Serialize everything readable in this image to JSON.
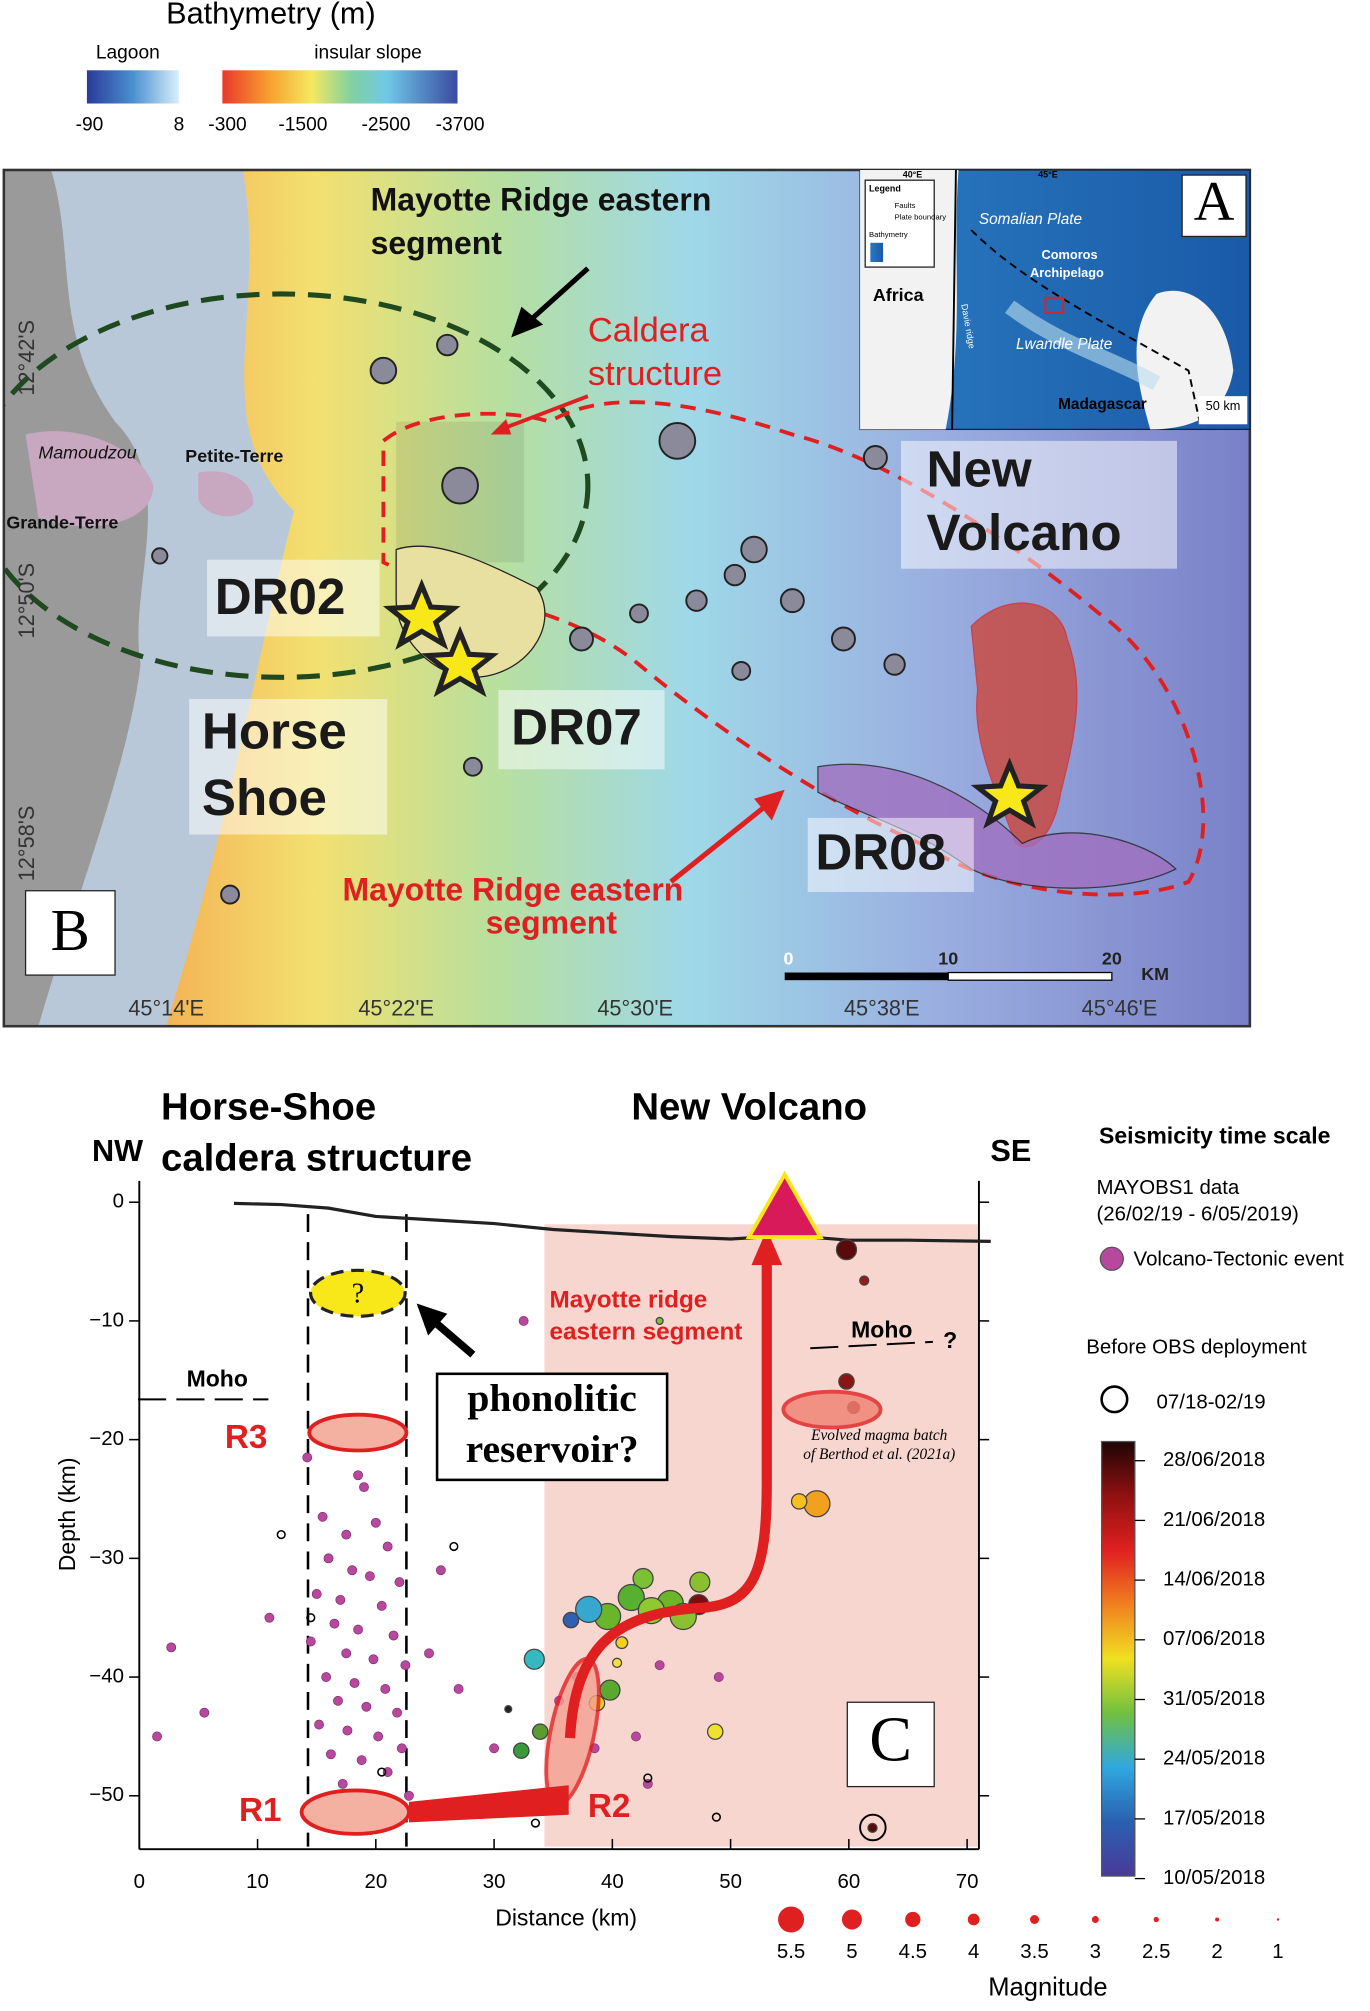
{
  "bathymetry_legend": {
    "title": "Bathymetry (m)",
    "lagoon": "Lagoon",
    "slope": "insular slope",
    "lagoon_ticks": [
      -90,
      8
    ],
    "slope_ticks": [
      -300,
      -1500,
      -2500,
      -3700
    ]
  },
  "map": {
    "panel": "B",
    "ridge_black": [
      "Mayotte Ridge eastern",
      "segment"
    ],
    "caldera": [
      "Caldera",
      "structure"
    ],
    "places": [
      "Mamoudzou",
      "Petite-Terre",
      "Grande-Terre"
    ],
    "new_volcano": [
      "New",
      "Volcano"
    ],
    "samples": [
      "DR02",
      "DR07",
      "DR08"
    ],
    "horse_shoe": [
      "Horse",
      "Shoe"
    ],
    "ridge_red": [
      "Mayotte Ridge eastern",
      "segment"
    ],
    "lat_labels": [
      "12°42'S",
      "12°50'S",
      "12°58'S"
    ],
    "lon_labels": [
      "45°14'E",
      "45°22'E",
      "45°30'E",
      "45°38'E",
      "45°46'E"
    ],
    "scale_ticks": [
      0,
      10,
      20
    ],
    "scale_unit": "KM"
  },
  "inset": {
    "panel": "A",
    "legend": "Legend",
    "faults": "Faults",
    "plate": "Plate boundary",
    "bathy": "Bathymetry",
    "lon": [
      "40°E",
      "45°E"
    ],
    "africa": "Africa",
    "somalian": "Somalian Plate",
    "comoros": [
      "Comoros",
      "Archipelago"
    ],
    "lwandle": "Lwandle Plate",
    "madagascar": "Madagascar",
    "davie": "Davie ridge",
    "scale": "50 km"
  },
  "chart_data": {
    "type": "scatter",
    "panel": "C",
    "title_left": [
      "Horse-Shoe",
      "caldera structure"
    ],
    "title_right": "New Volcano",
    "nw": "NW",
    "se": "SE",
    "x_label": "Distance (km)",
    "y_label": "Depth  (km)",
    "xlim": [
      0,
      71
    ],
    "ylim": [
      -54.5,
      1.8
    ],
    "xticks": [
      0,
      10,
      20,
      30,
      40,
      50,
      60,
      70
    ],
    "yticks": [
      0,
      {
        "value": -10,
        "label": "−10"
      },
      {
        "value": -20,
        "label": "−20"
      },
      {
        "value": -30,
        "label": "−30"
      },
      {
        "value": -40,
        "label": "−40"
      },
      {
        "value": -50,
        "label": "−50"
      }
    ],
    "annotations": {
      "moho": [
        "Moho",
        "Moho"
      ],
      "moho_q": "?",
      "reservoir_q": "?",
      "phonolitic": [
        "phonolitic",
        "reservoir?"
      ],
      "r1": "R1",
      "r2": "R2",
      "r3": "R3",
      "ridge": [
        "Mayotte ridge",
        "eastern segment"
      ],
      "evolved": [
        "Evolved magma batch",
        "of Berthod et al. (2021a)"
      ]
    },
    "seafloor": {
      "x": [
        8,
        12,
        16,
        20,
        25,
        30,
        35,
        40,
        45,
        50,
        55,
        60,
        65,
        72
      ],
      "values": [
        -0.1,
        -0.2,
        -0.5,
        -1.2,
        -1.5,
        -1.8,
        -2.3,
        -2.6,
        -2.9,
        -3.1,
        -2.8,
        -3.2,
        -3.2,
        -3.3
      ]
    },
    "series": [
      {
        "name": "Volcano-Tectonic event",
        "color": "#b8479e",
        "x": [
          18.5,
          19,
          15.5,
          20,
          17.5,
          21,
          16,
          18,
          19.5,
          22,
          15,
          17,
          20.5,
          16.5,
          18.5,
          21.5,
          14.5,
          17.5,
          19.8,
          22.5,
          15.8,
          18.2,
          20.8,
          16.8,
          19.2,
          21.8,
          15.2,
          17.6,
          20.2,
          22.2,
          16.2,
          18.8,
          21,
          17.2,
          19.5,
          22.8,
          14.2,
          2.7,
          5.5,
          1.5,
          11,
          24.5,
          25.5,
          27,
          32.5,
          35.5,
          37,
          36.5,
          38.5,
          44,
          49,
          42,
          34,
          30,
          43
        ],
        "values": [
          -23,
          -24,
          -26.5,
          -27,
          -28,
          -29,
          -30,
          -31,
          -31.5,
          -32,
          -33,
          -33.5,
          -34,
          -35.5,
          -36,
          -36.5,
          -37,
          -38,
          -38.5,
          -39,
          -40,
          -40.5,
          -41,
          -42,
          -42.5,
          -43,
          -44,
          -44.5,
          -45,
          -46,
          -46.5,
          -47,
          -48,
          -49,
          -50.5,
          -50,
          -21.5,
          -37.5,
          -43,
          -45,
          -35,
          -38,
          -31,
          -41,
          -10,
          -42,
          -40,
          -44,
          -46,
          -39,
          -40,
          -45,
          -50,
          -46,
          -49
        ]
      },
      {
        "name": "07/18-02/19",
        "color": "#000000",
        "x": [
          12,
          14.5,
          20.5,
          26.6,
          33.5,
          48.8,
          43
        ],
        "values": [
          -28,
          -35,
          -48,
          -29,
          -52.3,
          -51.8,
          -48.5
        ]
      },
      {
        "name": "MAYOBS1 data",
        "x": [
          59.8,
          61.3,
          59.8,
          60.4,
          57.3,
          55.8,
          47.3,
          47.4,
          44.9,
          42.6,
          39.6,
          38,
          36.5,
          33.4,
          40.8,
          40.4,
          39.8,
          38.7,
          48.7,
          33.9,
          32.3,
          31.2,
          62,
          44,
          41.6,
          46,
          43.3
        ],
        "values": [
          -4,
          -6.6,
          -15.1,
          -17.3,
          -25.4,
          -25.2,
          -33.9,
          -32,
          -33.8,
          -31.7,
          -34.9,
          -34.3,
          -35.2,
          -38.5,
          -37.1,
          -38.8,
          -41.1,
          -42.2,
          -44.6,
          -44.6,
          -46.2,
          -42.7,
          -52.7,
          -10,
          -33.3,
          -34.9,
          -34.4
        ],
        "sizes": [
          5,
          3.5,
          4.5,
          4,
          5.5,
          4.5,
          5,
          5,
          5.5,
          5,
          5.5,
          5.5,
          4.5,
          5,
          4,
          3.5,
          5,
          4.5,
          4.5,
          4.5,
          4.5,
          3,
          3.5,
          3,
          5.5,
          5.5,
          5.5
        ],
        "colors": [
          "#5a0a0a",
          "#9a1a1a",
          "#8a1515",
          "#a52020",
          "#f2a020",
          "#f5c020",
          "#7a0f0f",
          "#8ac030",
          "#6ab52a",
          "#7cc034",
          "#6ab52a",
          "#36a8d0",
          "#3060b0",
          "#36b8c0",
          "#f5d020",
          "#f4e040",
          "#5aa830",
          "#f2d020",
          "#f0e030",
          "#5a9c30",
          "#3a9a3a",
          "#222222",
          "#5a0a0a",
          "#7ac040",
          "#58b030",
          "#8cc030",
          "#90c830"
        ]
      }
    ],
    "legend": {
      "title": "Seismicity time scale",
      "mayobs": [
        "MAYOBS1 data",
        "(26/02/19 - 6/05/2019)"
      ],
      "before": "Before OBS deployment"
    },
    "time_scale": {
      "ticks": [
        "28/06/2018",
        "21/06/2018",
        "14/06/2018",
        "07/06/2018",
        "31/05/2018",
        "24/05/2018",
        "17/05/2018",
        "10/05/2018"
      ],
      "colors": [
        "#200505",
        "#901010",
        "#e02020",
        "#f08020",
        "#f0e020",
        "#70c040",
        "#30a8e0",
        "#2a60b0",
        "#4a3a9a"
      ]
    },
    "size_legend": {
      "title": "Magnitude",
      "values": [
        5.5,
        5,
        4.5,
        4,
        3.5,
        3,
        2.5,
        2,
        1
      ]
    }
  }
}
